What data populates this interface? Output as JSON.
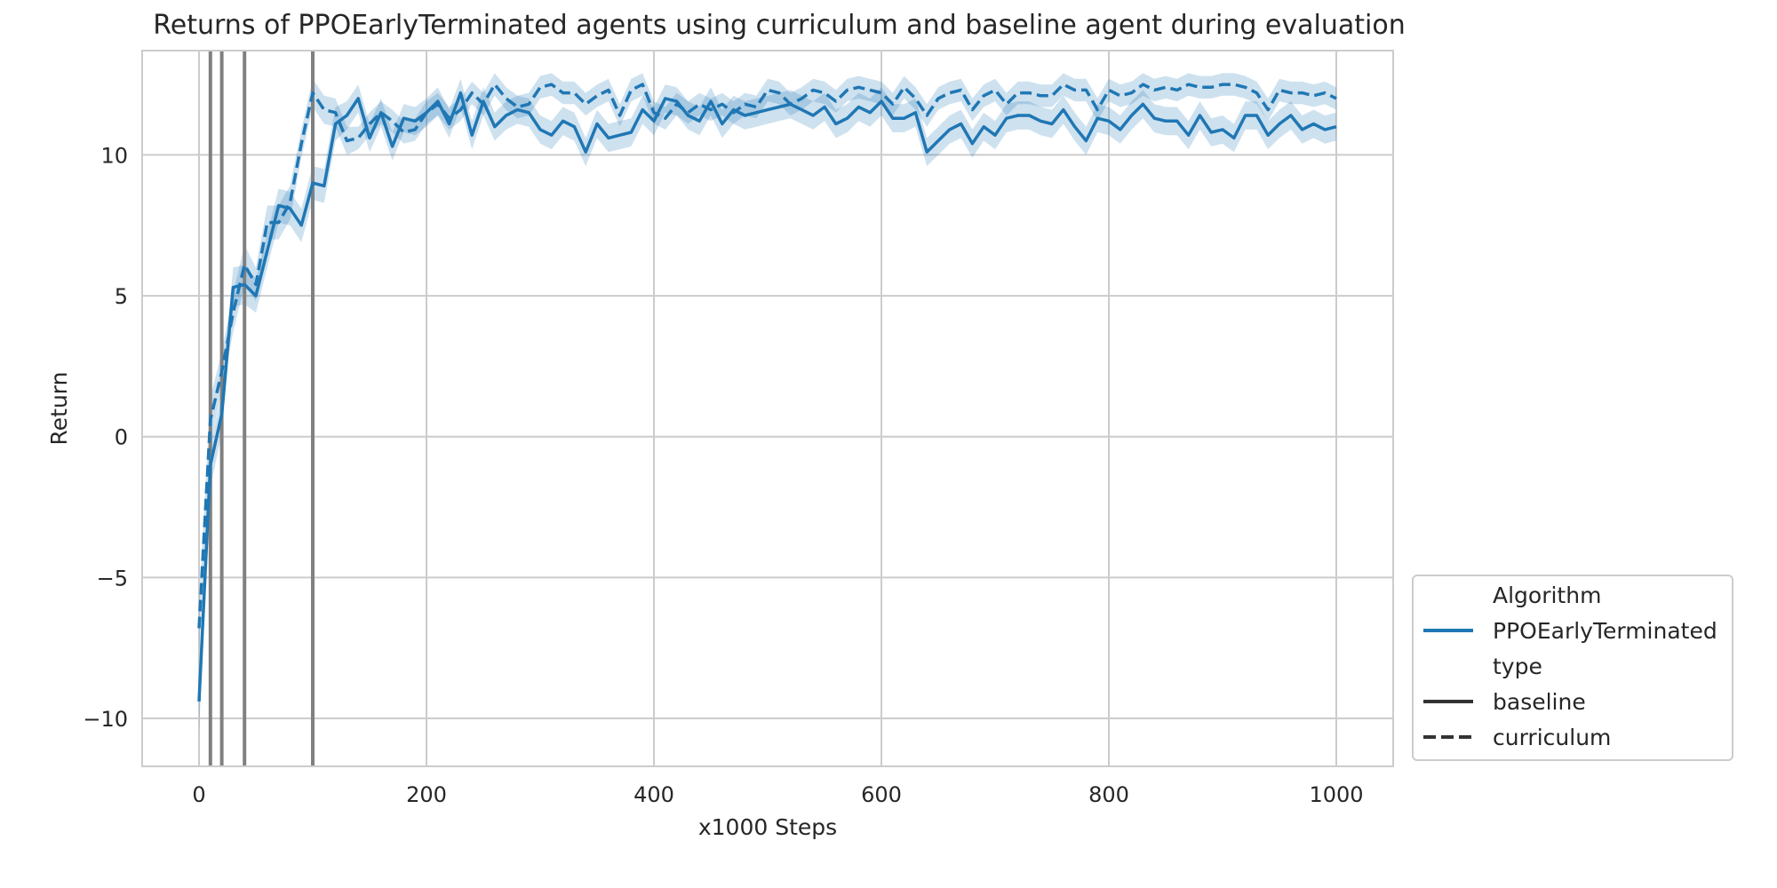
{
  "chart_data": {
    "type": "line",
    "title": "Returns of PPOEarlyTerminated agents using curriculum and baseline agent during evaluation",
    "xlabel": "x1000 Steps",
    "ylabel": "Return",
    "xlim": [
      -50,
      1050
    ],
    "ylim": [
      -11.7,
      13.7
    ],
    "xticks": [
      0,
      200,
      400,
      600,
      800,
      1000
    ],
    "xtick_labels": [
      "0",
      "200",
      "400",
      "600",
      "800",
      "1000"
    ],
    "yticks": [
      -10,
      -5,
      0,
      5,
      10
    ],
    "ytick_labels": [
      "−10",
      "−5",
      "0",
      "5",
      "10"
    ],
    "grid": true,
    "vertical_lines": [
      10,
      20,
      40,
      100
    ],
    "vertical_line_color": "#808080",
    "series_color": "#1f77b4",
    "band_color": "#a6c8e4",
    "legend": {
      "placement": "outside-lower-right",
      "algorithm_header": "Algorithm",
      "algorithm_entries": [
        "PPOEarlyTerminated"
      ],
      "type_header": "type",
      "type_entries": [
        "baseline",
        "curriculum"
      ]
    },
    "series": [
      {
        "name": "baseline",
        "style": "solid",
        "x": [
          0,
          10,
          20,
          30,
          40,
          50,
          60,
          70,
          80,
          90,
          100,
          110,
          120,
          130,
          140,
          150,
          160,
          170,
          180,
          190,
          200,
          210,
          220,
          230,
          240,
          250,
          260,
          270,
          280,
          290,
          300,
          310,
          320,
          330,
          340,
          350,
          360,
          370,
          380,
          390,
          400,
          410,
          420,
          430,
          440,
          450,
          460,
          470,
          480,
          490,
          500,
          510,
          520,
          530,
          540,
          550,
          560,
          570,
          580,
          590,
          600,
          610,
          620,
          630,
          640,
          650,
          660,
          670,
          680,
          690,
          700,
          710,
          720,
          730,
          740,
          750,
          760,
          770,
          780,
          790,
          800,
          810,
          820,
          830,
          840,
          850,
          860,
          870,
          880,
          890,
          900,
          910,
          920,
          930,
          940,
          950,
          960,
          970,
          980,
          990,
          1000
        ],
        "y": [
          -9.4,
          -1.0,
          0.8,
          5.3,
          5.4,
          5.0,
          6.6,
          8.2,
          8.1,
          7.5,
          9.0,
          8.9,
          11.1,
          11.4,
          12.0,
          10.6,
          11.5,
          10.3,
          11.3,
          11.2,
          11.5,
          11.9,
          11.1,
          12.2,
          10.7,
          11.9,
          11.0,
          11.4,
          11.6,
          11.5,
          10.9,
          10.7,
          11.2,
          11.0,
          10.1,
          11.1,
          10.6,
          10.7,
          10.8,
          11.6,
          11.2,
          12.0,
          11.9,
          11.4,
          11.2,
          11.9,
          11.1,
          11.6,
          11.4,
          11.5,
          11.6,
          11.7,
          11.8,
          11.6,
          11.4,
          11.7,
          11.1,
          11.3,
          11.7,
          11.5,
          11.9,
          11.3,
          11.3,
          11.5,
          10.1,
          10.5,
          10.9,
          11.1,
          10.4,
          11.0,
          10.7,
          11.3,
          11.4,
          11.4,
          11.2,
          11.1,
          11.6,
          11.0,
          10.5,
          11.3,
          11.2,
          10.9,
          11.4,
          11.8,
          11.3,
          11.2,
          11.2,
          10.7,
          11.4,
          10.8,
          10.9,
          10.6,
          11.4,
          11.4,
          10.7,
          11.1,
          11.4,
          10.9,
          11.1,
          10.9,
          11.0
        ],
        "ci": [
          1.1,
          0.8,
          0.7,
          0.7,
          0.7,
          0.6,
          0.6,
          0.6,
          0.6,
          0.6,
          0.6,
          0.6,
          0.6,
          0.5,
          0.5,
          0.5,
          0.5,
          0.5,
          0.5,
          0.5,
          0.5,
          0.5,
          0.5,
          0.5,
          0.5,
          0.5,
          0.5,
          0.5,
          0.5,
          0.5,
          0.5,
          0.5,
          0.5,
          0.5,
          0.5,
          0.5,
          0.5,
          0.5,
          0.5,
          0.5,
          0.5,
          0.5,
          0.5,
          0.5,
          0.5,
          0.5,
          0.5,
          0.5,
          0.5,
          0.5,
          0.5,
          0.5,
          0.5,
          0.5,
          0.5,
          0.5,
          0.5,
          0.5,
          0.5,
          0.5,
          0.5,
          0.5,
          0.5,
          0.5,
          0.5,
          0.5,
          0.5,
          0.5,
          0.5,
          0.5,
          0.5,
          0.5,
          0.5,
          0.5,
          0.5,
          0.5,
          0.5,
          0.5,
          0.5,
          0.5,
          0.5,
          0.5,
          0.5,
          0.5,
          0.5,
          0.5,
          0.5,
          0.5,
          0.5,
          0.5,
          0.5,
          0.5,
          0.5,
          0.5,
          0.5,
          0.5,
          0.5,
          0.5,
          0.5,
          0.5,
          0.5
        ]
      },
      {
        "name": "curriculum",
        "style": "dashed",
        "x": [
          0,
          10,
          20,
          30,
          40,
          50,
          60,
          70,
          80,
          90,
          100,
          110,
          120,
          130,
          140,
          150,
          160,
          170,
          180,
          190,
          200,
          210,
          220,
          230,
          240,
          250,
          260,
          270,
          280,
          290,
          300,
          310,
          320,
          330,
          340,
          350,
          360,
          370,
          380,
          390,
          400,
          410,
          420,
          430,
          440,
          450,
          460,
          470,
          480,
          490,
          500,
          510,
          520,
          530,
          540,
          550,
          560,
          570,
          580,
          590,
          600,
          610,
          620,
          630,
          640,
          650,
          660,
          670,
          680,
          690,
          700,
          710,
          720,
          730,
          740,
          750,
          760,
          770,
          780,
          790,
          800,
          810,
          820,
          830,
          840,
          850,
          860,
          870,
          880,
          890,
          900,
          910,
          920,
          930,
          940,
          950,
          960,
          970,
          980,
          990,
          1000
        ],
        "y": [
          -6.8,
          0.6,
          2.3,
          4.4,
          6.1,
          5.4,
          7.6,
          7.6,
          8.3,
          10.4,
          12.2,
          11.6,
          11.5,
          10.5,
          10.6,
          11.1,
          11.5,
          11.2,
          10.8,
          10.9,
          11.5,
          11.8,
          11.3,
          11.6,
          12.2,
          11.8,
          12.5,
          12.0,
          11.7,
          11.8,
          12.4,
          12.5,
          12.2,
          12.2,
          11.8,
          12.1,
          12.3,
          11.4,
          12.3,
          12.5,
          11.5,
          11.3,
          11.8,
          11.5,
          11.8,
          11.6,
          11.8,
          11.5,
          11.8,
          11.7,
          12.3,
          12.2,
          11.8,
          12.0,
          12.3,
          12.2,
          11.9,
          12.3,
          12.4,
          12.3,
          12.2,
          11.8,
          12.4,
          12.0,
          11.4,
          12.0,
          12.2,
          12.3,
          11.6,
          12.1,
          12.3,
          11.8,
          12.2,
          12.2,
          12.1,
          12.1,
          12.5,
          12.3,
          12.3,
          11.6,
          12.3,
          12.1,
          12.2,
          12.5,
          12.3,
          12.4,
          12.3,
          12.5,
          12.4,
          12.4,
          12.5,
          12.5,
          12.4,
          12.2,
          11.6,
          12.3,
          12.2,
          12.2,
          12.1,
          12.2,
          12.0
        ],
        "ci": [
          0.9,
          0.8,
          0.7,
          0.7,
          0.7,
          0.6,
          0.6,
          0.6,
          0.6,
          0.5,
          0.5,
          0.5,
          0.5,
          0.5,
          0.4,
          0.4,
          0.4,
          0.4,
          0.4,
          0.4,
          0.4,
          0.4,
          0.4,
          0.4,
          0.4,
          0.4,
          0.4,
          0.4,
          0.4,
          0.4,
          0.4,
          0.4,
          0.4,
          0.4,
          0.4,
          0.4,
          0.4,
          0.4,
          0.4,
          0.4,
          0.4,
          0.4,
          0.4,
          0.4,
          0.4,
          0.4,
          0.4,
          0.4,
          0.4,
          0.4,
          0.4,
          0.4,
          0.4,
          0.4,
          0.4,
          0.4,
          0.4,
          0.4,
          0.4,
          0.4,
          0.4,
          0.4,
          0.4,
          0.4,
          0.4,
          0.4,
          0.4,
          0.4,
          0.4,
          0.4,
          0.4,
          0.4,
          0.4,
          0.4,
          0.4,
          0.4,
          0.4,
          0.4,
          0.4,
          0.4,
          0.4,
          0.4,
          0.4,
          0.4,
          0.4,
          0.4,
          0.4,
          0.4,
          0.4,
          0.4,
          0.4,
          0.4,
          0.4,
          0.4,
          0.4,
          0.4,
          0.4,
          0.4,
          0.4,
          0.4,
          0.4
        ]
      }
    ]
  }
}
